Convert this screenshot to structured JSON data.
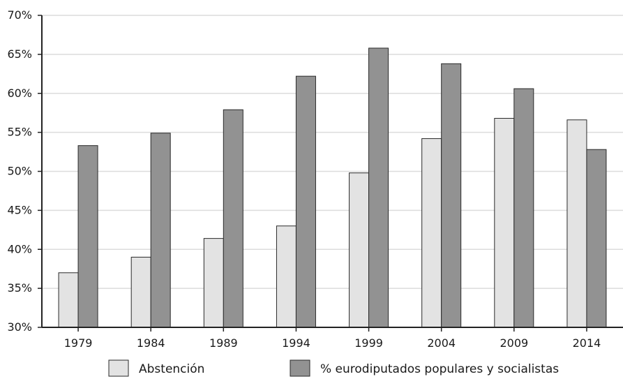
{
  "chart_data": {
    "type": "bar",
    "title": "",
    "xlabel": "",
    "ylabel": "",
    "categories": [
      "1979",
      "1984",
      "1989",
      "1994",
      "1999",
      "2004",
      "2009",
      "2014"
    ],
    "series": [
      {
        "name": "Abstención",
        "color": "#e3e3e3",
        "values": [
          37.0,
          39.0,
          41.4,
          43.0,
          49.8,
          54.2,
          56.8,
          56.6
        ]
      },
      {
        "name": "% eurodiputados populares y socialistas",
        "color": "#929292",
        "values": [
          53.3,
          54.9,
          57.9,
          62.2,
          65.8,
          63.8,
          60.6,
          52.8
        ]
      }
    ],
    "ylim": [
      30,
      70
    ],
    "yticks": [
      30,
      35,
      40,
      45,
      50,
      55,
      60,
      65,
      70
    ],
    "ytick_labels": [
      "30%",
      "35%",
      "40%",
      "45%",
      "50%",
      "55%",
      "60%",
      "65%",
      "70%"
    ],
    "grid": true,
    "legend_position": "bottom"
  }
}
